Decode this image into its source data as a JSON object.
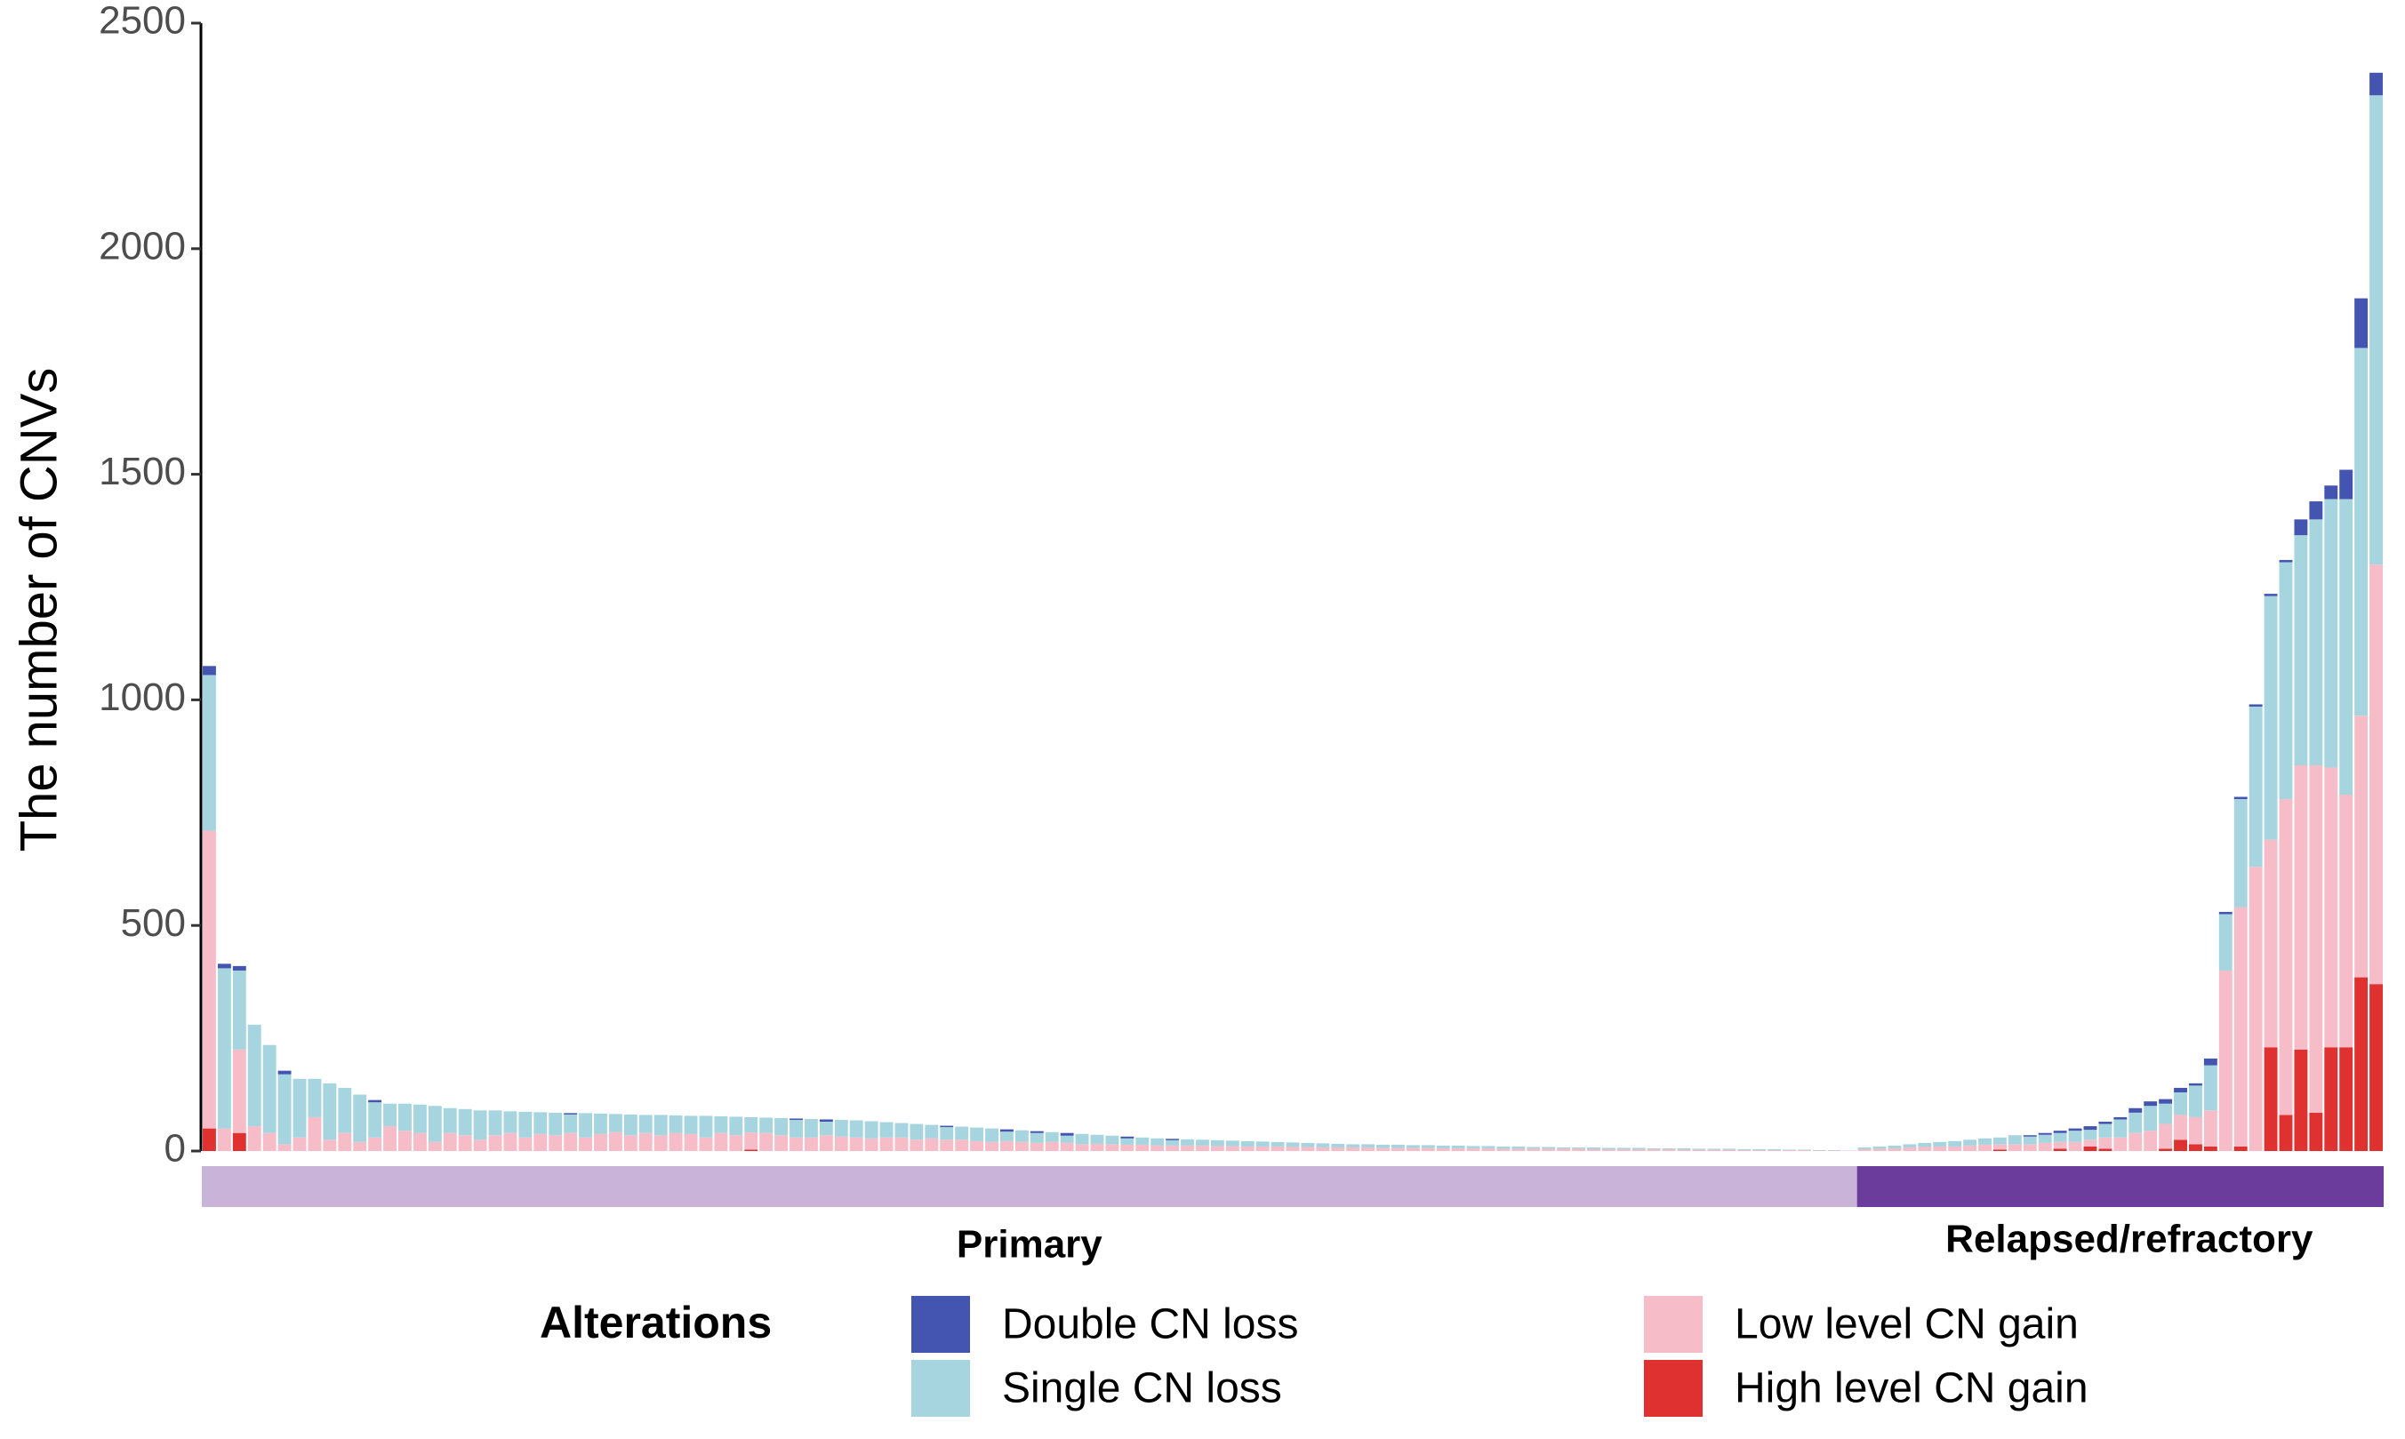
{
  "chart_data": {
    "type": "stacked_bar",
    "y_label": "The number of CNVs",
    "legend_title": "Alterations",
    "ylim": [
      0,
      2500
    ],
    "yticks": [
      0,
      500,
      1000,
      1500,
      2000,
      2500
    ],
    "categories": [
      null,
      null,
      null,
      null,
      null,
      null,
      null,
      null,
      null,
      null,
      null,
      null,
      null,
      null,
      null,
      null,
      null,
      null,
      null,
      null,
      null,
      null,
      null,
      null,
      null,
      null,
      null,
      null,
      null,
      null,
      null,
      null,
      null,
      null,
      null,
      null,
      null,
      null,
      null,
      null,
      null,
      null,
      null,
      null,
      null,
      null,
      null,
      null,
      null,
      null,
      null,
      null,
      null,
      null,
      null,
      null,
      null,
      null,
      null,
      null,
      null,
      null,
      null,
      null,
      null,
      null,
      null,
      null,
      null,
      null,
      null,
      null,
      null,
      null,
      null,
      null,
      null,
      null,
      null,
      null,
      null,
      null,
      null,
      null,
      null,
      null,
      null,
      null,
      null,
      null,
      null,
      null,
      null,
      null,
      null,
      null,
      null,
      null,
      null,
      null,
      null,
      null,
      null,
      null,
      null,
      null,
      null,
      null,
      null,
      null,
      null,
      null,
      null,
      null,
      null,
      null,
      null,
      null,
      null,
      null,
      null,
      null,
      null,
      null,
      null,
      null,
      null,
      null,
      null,
      null,
      null,
      null,
      null,
      null,
      null,
      null,
      null,
      null,
      null,
      null,
      null,
      null,
      null,
      null,
      null
    ],
    "groups": [
      {
        "name": "Primary",
        "color": "#c9b3d9",
        "start": 0,
        "end": 110
      },
      {
        "name": "Relapsed/refractory",
        "color": "#6c3c9c",
        "start": 110,
        "end": 145
      }
    ],
    "series": [
      {
        "name": "High level CN gain",
        "color": "#e03131",
        "values": [
          50,
          0,
          40,
          0,
          0,
          0,
          0,
          0,
          0,
          0,
          0,
          0,
          0,
          0,
          0,
          0,
          0,
          0,
          0,
          0,
          0,
          0,
          0,
          0,
          0,
          0,
          0,
          0,
          0,
          0,
          0,
          0,
          0,
          0,
          0,
          0,
          3,
          0,
          0,
          0,
          0,
          0,
          0,
          0,
          0,
          0,
          0,
          0,
          0,
          0,
          0,
          0,
          0,
          0,
          0,
          0,
          0,
          0,
          0,
          0,
          0,
          0,
          0,
          0,
          0,
          0,
          0,
          0,
          0,
          0,
          0,
          0,
          0,
          0,
          0,
          0,
          0,
          0,
          0,
          0,
          0,
          0,
          0,
          0,
          0,
          0,
          0,
          0,
          0,
          0,
          0,
          0,
          0,
          0,
          0,
          0,
          0,
          0,
          0,
          0,
          0,
          0,
          0,
          0,
          0,
          0,
          0,
          0,
          0,
          0,
          0,
          0,
          0,
          0,
          0,
          0,
          0,
          0,
          0,
          3,
          0,
          0,
          0,
          5,
          0,
          10,
          5,
          0,
          0,
          0,
          5,
          25,
          15,
          10,
          0,
          10,
          0,
          230,
          80,
          225,
          85,
          230,
          230,
          385,
          370
        ]
      },
      {
        "name": "Low level CN gain",
        "color": "#f6bcc8",
        "values": [
          660,
          50,
          185,
          55,
          40,
          15,
          30,
          75,
          25,
          40,
          20,
          30,
          55,
          45,
          40,
          20,
          40,
          35,
          25,
          35,
          40,
          30,
          38,
          35,
          40,
          30,
          38,
          42,
          35,
          40,
          35,
          40,
          38,
          30,
          40,
          35,
          38,
          40,
          35,
          30,
          30,
          35,
          32,
          30,
          28,
          30,
          30,
          25,
          28,
          25,
          25,
          22,
          20,
          22,
          20,
          18,
          20,
          18,
          15,
          16,
          15,
          14,
          14,
          12,
          12,
          12,
          12,
          11,
          11,
          10,
          10,
          10,
          9,
          9,
          8,
          8,
          8,
          8,
          7,
          7,
          7,
          7,
          6,
          6,
          6,
          6,
          5,
          5,
          5,
          5,
          5,
          5,
          4,
          4,
          4,
          4,
          4,
          4,
          3,
          3,
          3,
          3,
          2,
          2,
          2,
          2,
          2,
          1,
          1,
          1,
          4,
          5,
          6,
          8,
          9,
          10,
          10,
          12,
          14,
          12,
          15,
          15,
          18,
          15,
          20,
          15,
          25,
          30,
          40,
          45,
          55,
          55,
          60,
          80,
          400,
          530,
          630,
          460,
          700,
          630,
          770,
          620,
          560,
          580,
          930
        ]
      },
      {
        "name": "Single CN loss",
        "color": "#a6d5e0",
        "values": [
          345,
          355,
          175,
          225,
          195,
          155,
          130,
          85,
          125,
          100,
          105,
          78,
          50,
          60,
          63,
          80,
          55,
          58,
          65,
          55,
          48,
          57,
          48,
          50,
          41,
          54,
          45,
          40,
          46,
          40,
          45,
          39,
          40,
          48,
          37,
          41,
          34,
          34,
          38,
          39,
          41,
          30,
          37,
          38,
          38,
          34,
          32,
          35,
          30,
          28,
          29,
          30,
          30,
          21,
          26,
          22,
          22,
          16,
          23,
          20,
          19,
          14,
          16,
          16,
          12,
          14,
          13,
          13,
          12,
          12,
          11,
          10,
          10,
          9,
          9,
          8,
          7,
          7,
          7,
          7,
          6,
          6,
          6,
          6,
          5,
          5,
          5,
          5,
          4,
          4,
          3,
          3,
          4,
          3,
          3,
          3,
          2,
          2,
          3,
          2,
          2,
          2,
          2,
          2,
          2,
          1,
          1,
          1,
          1,
          0,
          4,
          5,
          6,
          7,
          9,
          10,
          12,
          13,
          14,
          15,
          20,
          17,
          18,
          20,
          25,
          22,
          30,
          40,
          45,
          55,
          45,
          50,
          70,
          100,
          125,
          240,
          355,
          540,
          525,
          510,
          545,
          595,
          655,
          815,
          1040
        ]
      },
      {
        "name": "Double CN loss",
        "color": "#4355b0",
        "values": [
          20,
          10,
          10,
          0,
          0,
          8,
          0,
          0,
          0,
          0,
          0,
          5,
          0,
          0,
          0,
          0,
          0,
          0,
          0,
          0,
          0,
          0,
          0,
          0,
          3,
          0,
          0,
          0,
          0,
          0,
          0,
          0,
          0,
          0,
          0,
          0,
          0,
          0,
          0,
          3,
          0,
          5,
          0,
          0,
          0,
          0,
          0,
          0,
          0,
          3,
          0,
          0,
          0,
          5,
          0,
          4,
          0,
          6,
          0,
          0,
          0,
          4,
          0,
          0,
          3,
          0,
          0,
          0,
          0,
          0,
          0,
          0,
          0,
          0,
          0,
          0,
          0,
          0,
          0,
          0,
          0,
          0,
          0,
          0,
          0,
          0,
          0,
          0,
          0,
          0,
          0,
          0,
          0,
          0,
          0,
          0,
          0,
          0,
          0,
          0,
          0,
          0,
          0,
          0,
          0,
          0,
          0,
          0,
          0,
          0,
          0,
          0,
          0,
          0,
          0,
          0,
          0,
          0,
          0,
          0,
          0,
          3,
          4,
          5,
          5,
          8,
          5,
          5,
          10,
          10,
          10,
          10,
          5,
          15,
          5,
          5,
          5,
          5,
          5,
          35,
          40,
          30,
          65,
          110,
          50
        ]
      }
    ]
  }
}
